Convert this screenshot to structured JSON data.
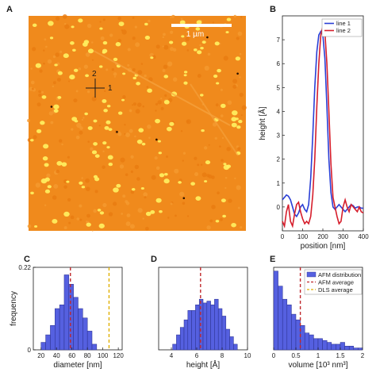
{
  "panels": {
    "A": "A",
    "B": "B",
    "C": "C",
    "D": "D",
    "E": "E"
  },
  "afm_image": {
    "scalebar_label": "1 µm",
    "line_labels": [
      "1",
      "2"
    ],
    "colors": {
      "background": "#f08a1c",
      "particle": "#fff060",
      "scalebar": "#ffffff",
      "crosshair": "#1a1a1a"
    }
  },
  "chart_data": [
    {
      "panel": "B",
      "type": "line",
      "xlabel": "position [nm]",
      "ylabel": "height [Å]",
      "xlim": [
        0,
        400
      ],
      "xticks": [
        0,
        100,
        200,
        300,
        400
      ],
      "ylim": [
        -1,
        8
      ],
      "yticks": [
        0,
        1,
        2,
        3,
        4,
        5,
        6,
        7
      ],
      "legend_position": "top-right",
      "series": [
        {
          "name": "line 1",
          "color": "#2a3fd6",
          "x": [
            0,
            10,
            20,
            30,
            40,
            50,
            60,
            70,
            80,
            90,
            100,
            110,
            120,
            130,
            140,
            150,
            160,
            170,
            180,
            190,
            200,
            210,
            220,
            230,
            240,
            250,
            260,
            270,
            280,
            290,
            300,
            310,
            320,
            330,
            340,
            350,
            360,
            370,
            380,
            390,
            400
          ],
          "y": [
            0.3,
            0.4,
            0.5,
            0.45,
            0.3,
            0.0,
            -0.3,
            -0.4,
            -0.25,
            0.0,
            0.1,
            -0.1,
            -0.2,
            0.1,
            1.2,
            3.0,
            5.0,
            6.5,
            7.2,
            7.35,
            7.2,
            6.2,
            4.2,
            2.0,
            0.6,
            0.0,
            -0.1,
            0.0,
            0.1,
            0.0,
            -0.1,
            -0.2,
            -0.1,
            0.0,
            0.1,
            0.05,
            -0.05,
            0.0,
            0.0,
            -0.05,
            -0.05
          ]
        },
        {
          "name": "line 2",
          "color": "#d61e2c",
          "x": [
            0,
            10,
            20,
            30,
            40,
            50,
            60,
            70,
            80,
            90,
            100,
            110,
            120,
            130,
            140,
            150,
            160,
            170,
            180,
            190,
            200,
            210,
            220,
            230,
            240,
            250,
            260,
            270,
            280,
            290,
            300,
            310,
            320,
            330,
            340,
            350,
            360,
            370,
            380,
            390,
            400
          ],
          "y": [
            -0.6,
            -0.8,
            -0.2,
            0.1,
            -0.6,
            -0.8,
            -0.3,
            0.1,
            0.2,
            -0.2,
            -0.5,
            -0.7,
            -0.6,
            -0.7,
            -0.4,
            0.5,
            2.0,
            4.2,
            6.0,
            7.2,
            7.55,
            7.3,
            6.0,
            4.0,
            1.8,
            0.4,
            0.0,
            -0.4,
            -0.7,
            -0.6,
            0.0,
            0.3,
            0.0,
            -0.2,
            0.1,
            0.0,
            -0.1,
            -0.2,
            0.0,
            -0.2,
            -0.25
          ]
        }
      ]
    },
    {
      "panel": "C",
      "type": "bar",
      "xlabel": "diameter [nm]",
      "ylabel": "frequency",
      "xlim": [
        10,
        125
      ],
      "xticks": [
        20,
        40,
        60,
        80,
        100,
        120
      ],
      "ylim": [
        0,
        0.22
      ],
      "yticks": [
        0,
        0.22
      ],
      "bin_edges": [
        20,
        26,
        32,
        38,
        44,
        50,
        56,
        62,
        68,
        74,
        80,
        86,
        92
      ],
      "values": [
        0.02,
        0.04,
        0.065,
        0.11,
        0.12,
        0.2,
        0.175,
        0.14,
        0.11,
        0.085,
        0.05,
        0.015
      ],
      "bar_color": "#5560e0",
      "reference_lines": [
        {
          "name": "AFM average",
          "x": 58,
          "color": "#c0282c",
          "style": "dashed"
        },
        {
          "name": "DLS average",
          "x": 108,
          "color": "#e0b000",
          "style": "dashed"
        }
      ]
    },
    {
      "panel": "D",
      "type": "bar",
      "xlabel": "height [Å]",
      "xlim": [
        3,
        10
      ],
      "xticks": [
        4,
        6,
        8,
        10
      ],
      "ylim": [
        0,
        0.22
      ],
      "bin_edges": [
        4.1,
        4.4,
        4.7,
        5.0,
        5.3,
        5.6,
        5.9,
        6.2,
        6.5,
        6.8,
        7.1,
        7.4,
        7.7,
        8.0,
        8.3,
        8.6,
        8.9,
        9.2
      ],
      "values": [
        0.015,
        0.04,
        0.06,
        0.08,
        0.105,
        0.105,
        0.12,
        0.135,
        0.125,
        0.13,
        0.12,
        0.135,
        0.11,
        0.09,
        0.055,
        0.035,
        0.015
      ],
      "bar_color": "#5560e0",
      "reference_lines": [
        {
          "name": "AFM average",
          "x": 6.3,
          "color": "#c0282c",
          "style": "dashed"
        }
      ]
    },
    {
      "panel": "E",
      "type": "bar",
      "xlabel": "volume [10³ nm³]",
      "xlim": [
        0,
        2
      ],
      "xticks": [
        0,
        0.5,
        1,
        1.5,
        2
      ],
      "ylim": [
        0,
        0.22
      ],
      "bin_edges": [
        0,
        0.1,
        0.2,
        0.3,
        0.4,
        0.5,
        0.6,
        0.7,
        0.8,
        0.9,
        1.0,
        1.1,
        1.2,
        1.3,
        1.4,
        1.5,
        1.6,
        1.7,
        1.8,
        1.9,
        2.0
      ],
      "values": [
        0.21,
        0.17,
        0.135,
        0.12,
        0.095,
        0.08,
        0.065,
        0.045,
        0.04,
        0.03,
        0.03,
        0.025,
        0.02,
        0.015,
        0.015,
        0.02,
        0.01,
        0.01,
        0.005,
        0.005
      ],
      "bar_color": "#5560e0",
      "reference_lines": [
        {
          "name": "AFM average",
          "x": 0.6,
          "color": "#c0282c",
          "style": "dashed"
        }
      ],
      "legend_position": "top-right",
      "legend": [
        {
          "label": "AFM distribution",
          "kind": "patch",
          "color": "#5560e0"
        },
        {
          "label": "AFM average",
          "kind": "dashed",
          "color": "#c0282c"
        },
        {
          "label": "DLS average",
          "kind": "dashed",
          "color": "#e0b000"
        }
      ]
    }
  ]
}
